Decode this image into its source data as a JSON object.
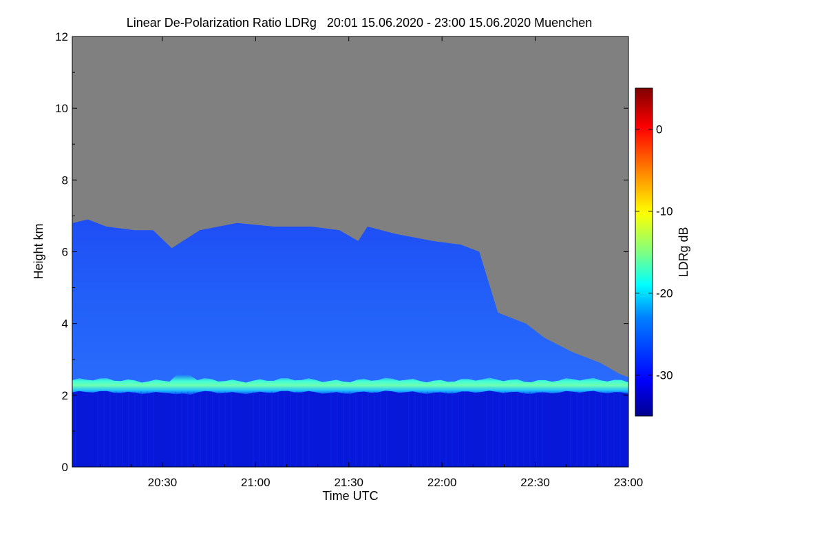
{
  "chart_data": {
    "type": "heatmap",
    "title": "Linear De-Polarization Ratio LDRg   20:01 15.06.2020 - 23:00 15.06.2020 Muenchen",
    "xlabel": "Time UTC",
    "ylabel": "Height km",
    "x_range": [
      "20:01",
      "23:00"
    ],
    "x_ticks": [
      "20:30",
      "21:00",
      "21:30",
      "22:00",
      "22:30",
      "23:00"
    ],
    "x_tick_hours": [
      20.5,
      21.0,
      21.5,
      22.0,
      22.5,
      23.0
    ],
    "ylim": [
      0,
      12
    ],
    "y_ticks": [
      0,
      2,
      4,
      6,
      8,
      10,
      12
    ],
    "colorbar": {
      "label": "LDRg dB",
      "range": [
        -35,
        5
      ],
      "ticks": [
        0,
        -10,
        -20,
        -30
      ],
      "colormap": [
        "#00008f",
        "#0000ff",
        "#0080ff",
        "#00ffff",
        "#80ff80",
        "#ffff00",
        "#ff8000",
        "#ff0000",
        "#800000"
      ]
    },
    "no_data_color": "#808080",
    "layers": [
      {
        "name": "below aerosol top (0-2.2 km)",
        "ldr_db": -33
      },
      {
        "name": "aerosol top peak (~2.2-2.4 km)",
        "ldr_db": -22
      },
      {
        "name": "free troposphere signal",
        "ldr_db": -29
      }
    ],
    "signal_top_km": {
      "time_hours": [
        20.02,
        20.1,
        20.2,
        20.35,
        20.45,
        20.55,
        20.7,
        20.9,
        21.1,
        21.3,
        21.45,
        21.55,
        21.6,
        21.75,
        21.95,
        22.1,
        22.2,
        22.3,
        22.45,
        22.55,
        22.7,
        22.85,
        22.95,
        23.0
      ],
      "height_km": [
        6.8,
        6.9,
        6.7,
        6.6,
        6.6,
        6.1,
        6.6,
        6.8,
        6.7,
        6.7,
        6.6,
        6.3,
        6.7,
        6.5,
        6.3,
        6.2,
        6.0,
        4.3,
        4.0,
        3.6,
        3.2,
        2.9,
        2.6,
        2.5
      ]
    }
  }
}
